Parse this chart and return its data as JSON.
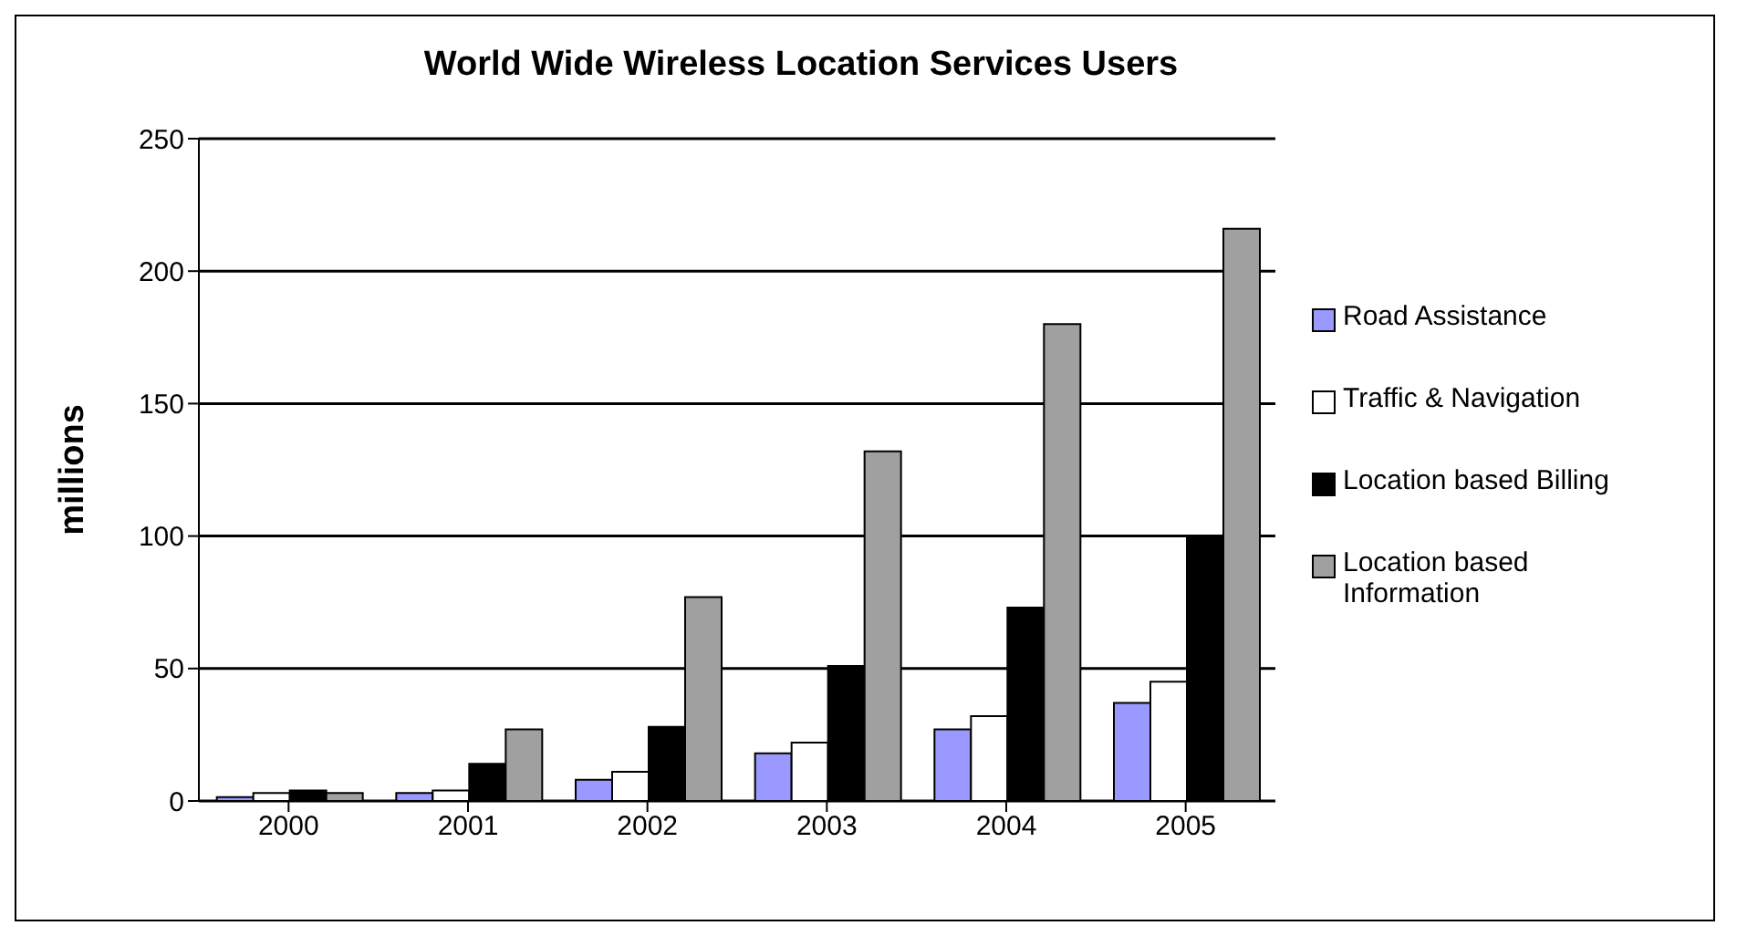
{
  "chart_data": {
    "type": "bar",
    "title": "World Wide Wireless Location Services Users",
    "ylabel": "millions",
    "categories": [
      "2000",
      "2001",
      "2002",
      "2003",
      "2004",
      "2005"
    ],
    "series": [
      {
        "name": "Road Assistance",
        "color": "#9999ff",
        "values": [
          1.5,
          3,
          8,
          18,
          27,
          37
        ]
      },
      {
        "name": "Traffic & Navigation",
        "color": "#ffffff",
        "values": [
          3,
          4,
          11,
          22,
          32,
          45
        ]
      },
      {
        "name": "Location based Billing",
        "color": "#000000",
        "values": [
          4,
          14,
          28,
          51,
          73,
          100
        ]
      },
      {
        "name": "Location based Information",
        "color": "#a0a0a0",
        "values": [
          3,
          27,
          77,
          132,
          180,
          216
        ]
      }
    ],
    "ylim": [
      0,
      250
    ],
    "yticks": [
      0,
      50,
      100,
      150,
      200,
      250
    ],
    "grid": "y",
    "legend": "right"
  }
}
